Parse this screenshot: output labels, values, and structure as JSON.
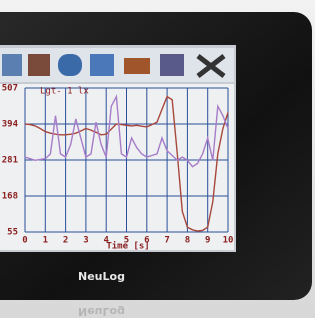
{
  "chart_data": {
    "type": "line",
    "annotation": "Lgt- 1 lx",
    "x_label": "Time [s]",
    "brand": "NeuLog",
    "x": [
      0,
      0.25,
      0.5,
      0.75,
      1,
      1.25,
      1.5,
      1.75,
      2,
      2.25,
      2.5,
      2.75,
      3,
      3.25,
      3.5,
      3.75,
      4,
      4.25,
      4.5,
      4.75,
      5,
      5.25,
      5.5,
      5.75,
      6,
      6.25,
      6.5,
      6.75,
      7,
      7.25,
      7.5,
      7.75,
      8,
      8.25,
      8.5,
      8.75,
      9,
      9.25,
      9.5,
      9.75,
      10
    ],
    "series": [
      {
        "color": "#a8473c",
        "values": [
          394,
          392,
          388,
          380,
          370,
          365,
          362,
          360,
          360,
          362,
          365,
          372,
          380,
          375,
          368,
          360,
          362,
          378,
          394,
          392,
          390,
          388,
          390,
          387,
          385,
          392,
          400,
          440,
          480,
          470,
          300,
          120,
          70,
          62,
          58,
          60,
          70,
          150,
          300,
          380,
          430
        ]
      },
      {
        "color": "#a77cc8",
        "values": [
          290,
          285,
          280,
          283,
          285,
          300,
          420,
          300,
          290,
          330,
          410,
          350,
          290,
          300,
          400,
          330,
          290,
          450,
          480,
          300,
          290,
          350,
          320,
          300,
          290,
          295,
          300,
          350,
          310,
          295,
          280,
          290,
          280,
          260,
          270,
          300,
          350,
          280,
          450,
          420,
          380
        ]
      }
    ],
    "xlim": [
      0,
      10
    ],
    "xticks": [
      0,
      1,
      2,
      3,
      4,
      5,
      6,
      7,
      8,
      9,
      10
    ],
    "ylim": [
      55,
      507
    ],
    "yticks": [
      55,
      168,
      281,
      394,
      507
    ],
    "grid": true
  }
}
